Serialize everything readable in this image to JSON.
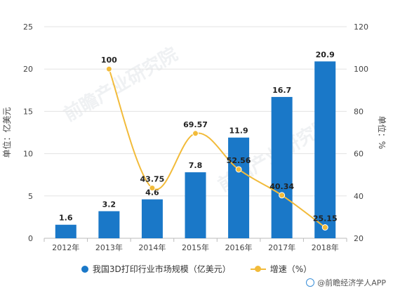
{
  "chart_data": {
    "type": "bar",
    "categories": [
      "2012年",
      "2013年",
      "2014年",
      "2015年",
      "2016年",
      "2017年",
      "2018年"
    ],
    "series": [
      {
        "name": "我国3D打印行业市场规模（亿美元）",
        "type": "bar",
        "axis": "left",
        "values": [
          1.6,
          3.2,
          4.6,
          7.8,
          11.9,
          16.7,
          20.9
        ],
        "labels": [
          "1.6",
          "3.2",
          "4.6",
          "7.8",
          "11.9",
          "16.7",
          "20.9"
        ],
        "color": "#1a78c8"
      },
      {
        "name": "增速（%）",
        "type": "line",
        "axis": "right",
        "values": [
          null,
          100,
          43.75,
          69.57,
          52.56,
          40.34,
          25.15
        ],
        "labels": [
          "",
          "100",
          "43.75",
          "69.57",
          "52.56",
          "40.34",
          "25.15"
        ],
        "color": "#f2bb3a"
      }
    ],
    "ylabel": "单位：亿美元",
    "y2label": "单位：%",
    "ylim": [
      0,
      25
    ],
    "y2lim": [
      20,
      120
    ],
    "yticks": [
      "0",
      "5",
      "10",
      "15",
      "20",
      "25"
    ],
    "y2ticks": [
      "20",
      "40",
      "60",
      "80",
      "100",
      "120"
    ],
    "grid": true,
    "legend": "bottom-center"
  },
  "watermark": {
    "text": "前瞻产业研究院",
    "source": "@前瞻经济学人APP"
  }
}
